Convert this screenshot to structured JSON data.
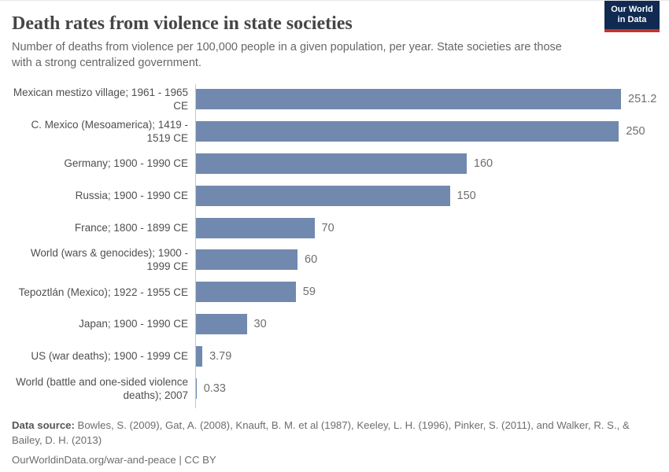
{
  "header": {
    "title": "Death rates from violence in state societies",
    "subtitle": "Number of deaths from violence per 100,000 people in a given population, per year. State societies are those with a strong centralized government.",
    "logo": {
      "line1": "Our World",
      "line2": "in Data",
      "background_color": "#102a52",
      "accent_color": "#c5332d"
    }
  },
  "chart_data": {
    "type": "bar",
    "orientation": "horizontal",
    "title": "Death rates from violence in state societies",
    "xlabel": "",
    "ylabel": "",
    "grid": false,
    "xlim": [
      0,
      251.2
    ],
    "bar_color": "#7189ae",
    "categories": [
      "Mexican mestizo village; 1961 - 1965 CE",
      "C. Mexico (Mesoamerica); 1419 - 1519 CE",
      "Germany; 1900 - 1990 CE",
      "Russia; 1900 - 1990 CE",
      "France; 1800 - 1899 CE",
      "World (wars & genocides); 1900 - 1999 CE",
      "Tepoztlán (Mexico); 1922 - 1955 CE",
      "Japan; 1900 - 1990 CE",
      "US (war deaths); 1900 - 1999 CE",
      "World (battle and one-sided violence deaths); 2007"
    ],
    "values": [
      251.2,
      250,
      160,
      150,
      70,
      60,
      59,
      30,
      3.79,
      0.33
    ],
    "value_labels": [
      "251.2",
      "250",
      "160",
      "150",
      "70",
      "60",
      "59",
      "30",
      "3.79",
      "0.33"
    ]
  },
  "footer": {
    "source_label": "Data source:",
    "source_text": " Bowles, S. (2009), Gat, A. (2008), Knauft, B. M. et al (1987), Keeley, L. H. (1996), Pinker, S. (2011), and Walker, R. S., & Bailey, D. H. (2013)",
    "link": "OurWorldinData.org/war-and-peace",
    "divider": " | ",
    "license": "CC BY"
  }
}
